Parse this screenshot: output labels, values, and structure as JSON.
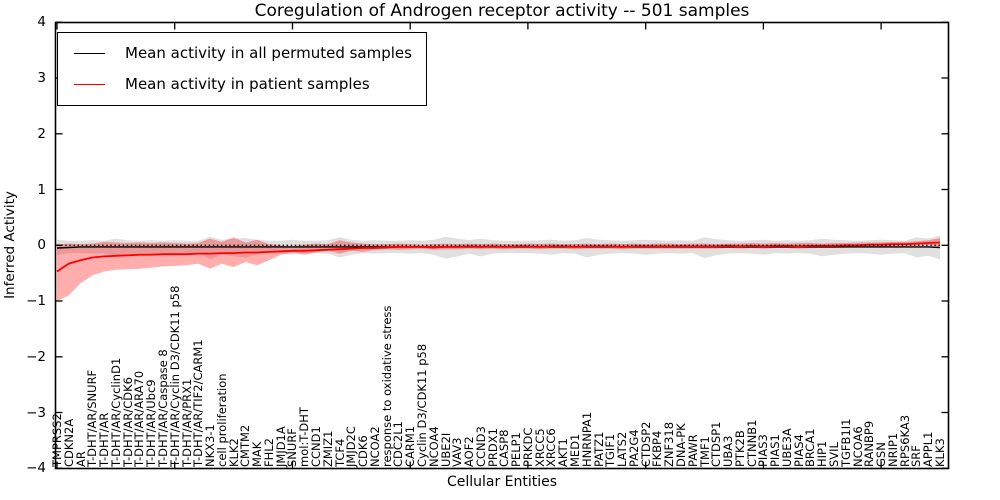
{
  "figure": {
    "title": "Coregulation of Androgen receptor activity -- 501 samples",
    "xlabel": "Cellular Entities",
    "ylabel": "Inferred Activity"
  },
  "legend": {
    "position": "upper left",
    "items": [
      {
        "label": "Mean activity in all permuted samples",
        "color": "#000000",
        "line_width": 1.4
      },
      {
        "label": "Mean activity in patient samples",
        "color": "#ff0000",
        "line_width": 1.8
      }
    ]
  },
  "chart_data": {
    "type": "line",
    "title": "Coregulation of Androgen receptor activity -- 501 samples",
    "xlabel": "Cellular Entities",
    "ylabel": "Inferred Activity",
    "ylim": [
      -4,
      4
    ],
    "grid": false,
    "legend_position": "upper left",
    "ytick_values": [
      4,
      3,
      2,
      1,
      0,
      -1,
      -2,
      -3,
      -4
    ],
    "ytick_labels": [
      "4",
      "3",
      "2",
      "1",
      "0",
      "−1",
      "−2",
      "−3",
      "−4"
    ],
    "reference_line": {
      "y": 0,
      "style": "dotted",
      "color": "#000000"
    },
    "categories": [
      "TMPRSS2",
      "CDKN2A",
      "AR",
      "T-DHT/AR/SNURF",
      "T-DHT/AR",
      "T-DHT/AR/CyclinD1",
      "T-DHT/AR/CDK6",
      "T-DHT/AR/ARA70",
      "T-DHT/AR/Ubc9",
      "T-DHT/AR/Caspase 8",
      "T-DHT/AR/Cyclin D3/CDK11 p58",
      "T-DHT/AR/PRX1",
      "T-DHT/AR/TIF2/CARM1",
      "NKX3-1",
      "cell proliferation",
      "KLK2",
      "CMTM2",
      "MAK",
      "FHL2",
      "JMJD1A",
      "SNURF",
      "mol:T-DHT",
      "CCND1",
      "ZMIZ1",
      "TCF4",
      "JMJD2C",
      "CDK6",
      "NCOA2",
      "response to oxidative stress",
      "CDC2L1",
      "CARM1",
      "Cyclin D3/CDK11 p58",
      "NCOA4",
      "UBE2I",
      "VAV3",
      "AOF2",
      "CCND3",
      "PRDX1",
      "CASP8",
      "PELP1",
      "PRKDC",
      "XRCC5",
      "XRCC6",
      "AKT1",
      "MED1",
      "HNRNPA1",
      "PATZ1",
      "TGIF1",
      "LATS2",
      "PA2G4",
      "CTDSP2",
      "FKBP4",
      "ZNF318",
      "DNA-PK",
      "PAWR",
      "TMF1",
      "CTDSP1",
      "UBA3",
      "PTK2B",
      "CTNNB1",
      "PIAS3",
      "PIAS1",
      "UBE3A",
      "PIAS4",
      "BRCA1",
      "HIP1",
      "SVIL",
      "TGFB1I1",
      "NCOA6",
      "RANBP9",
      "GSN",
      "NRIP1",
      "RPS6KA3",
      "SRF",
      "APPL1",
      "KLK3"
    ],
    "series": [
      {
        "name": "Mean activity in all permuted samples",
        "color": "#000000",
        "style": "solid",
        "width": 1.4,
        "values": [
          -0.05,
          -0.04,
          -0.03,
          -0.03,
          -0.03,
          -0.03,
          -0.03,
          -0.03,
          -0.03,
          -0.03,
          -0.03,
          -0.03,
          -0.03,
          -0.03,
          -0.03,
          -0.03,
          -0.03,
          -0.03,
          -0.03,
          -0.03,
          -0.03,
          -0.03,
          -0.03,
          -0.03,
          -0.03,
          -0.03,
          -0.03,
          -0.03,
          -0.03,
          -0.03,
          -0.03,
          -0.03,
          -0.03,
          -0.03,
          -0.03,
          -0.03,
          -0.03,
          -0.03,
          -0.03,
          -0.03,
          -0.03,
          -0.03,
          -0.03,
          -0.03,
          -0.03,
          -0.03,
          -0.03,
          -0.03,
          -0.03,
          -0.03,
          -0.03,
          -0.03,
          -0.03,
          -0.03,
          -0.03,
          -0.03,
          -0.03,
          -0.03,
          -0.03,
          -0.03,
          -0.03,
          -0.03,
          -0.03,
          -0.03,
          -0.03,
          -0.03,
          -0.03,
          -0.03,
          -0.03,
          -0.03,
          -0.03,
          -0.03,
          -0.03,
          -0.03,
          -0.03,
          -0.04
        ]
      },
      {
        "name": "Mean activity in patient samples",
        "color": "#ff0000",
        "style": "solid",
        "width": 1.8,
        "values": [
          -0.47,
          -0.33,
          -0.27,
          -0.22,
          -0.2,
          -0.19,
          -0.18,
          -0.17,
          -0.17,
          -0.16,
          -0.16,
          -0.16,
          -0.15,
          -0.15,
          -0.14,
          -0.14,
          -0.13,
          -0.13,
          -0.12,
          -0.11,
          -0.1,
          -0.1,
          -0.09,
          -0.08,
          -0.07,
          -0.06,
          -0.05,
          -0.05,
          -0.04,
          -0.03,
          -0.03,
          -0.03,
          -0.04,
          -0.03,
          -0.03,
          -0.02,
          -0.03,
          -0.02,
          -0.03,
          -0.02,
          -0.02,
          -0.03,
          -0.02,
          -0.02,
          -0.03,
          -0.02,
          -0.02,
          -0.02,
          -0.03,
          -0.02,
          -0.02,
          -0.02,
          -0.02,
          -0.02,
          -0.02,
          -0.02,
          -0.02,
          -0.01,
          -0.02,
          -0.01,
          -0.02,
          -0.01,
          -0.01,
          -0.02,
          -0.01,
          -0.01,
          -0.01,
          0.0,
          0.0,
          0.01,
          0.01,
          0.02,
          0.02,
          0.03,
          0.04,
          0.05
        ]
      }
    ],
    "bands": [
      {
        "name": "permuted-samples-std-band",
        "color": "#555555",
        "opacity": 0.18,
        "upper": [
          0.1,
          0.08,
          0.08,
          0.09,
          0.08,
          0.12,
          0.09,
          0.08,
          0.09,
          0.08,
          0.09,
          0.08,
          0.08,
          0.15,
          0.1,
          0.12,
          0.13,
          0.1,
          0.08,
          0.08,
          0.1,
          0.08,
          0.08,
          0.09,
          0.14,
          0.1,
          0.08,
          0.09,
          0.08,
          0.08,
          0.09,
          0.08,
          0.1,
          0.15,
          0.12,
          0.09,
          0.12,
          0.09,
          0.08,
          0.08,
          0.08,
          0.09,
          0.1,
          0.08,
          0.09,
          0.13,
          0.1,
          0.09,
          0.08,
          0.09,
          0.1,
          0.09,
          0.08,
          0.09,
          0.08,
          0.14,
          0.11,
          0.09,
          0.08,
          0.09,
          0.1,
          0.08,
          0.09,
          0.08,
          0.09,
          0.12,
          0.1,
          0.09,
          0.08,
          0.09,
          0.1,
          0.09,
          0.08,
          0.14,
          0.12,
          0.17
        ],
        "lower": [
          -0.18,
          -0.14,
          -0.14,
          -0.15,
          -0.14,
          -0.2,
          -0.15,
          -0.14,
          -0.15,
          -0.14,
          -0.15,
          -0.14,
          -0.14,
          -0.25,
          -0.17,
          -0.2,
          -0.22,
          -0.17,
          -0.14,
          -0.14,
          -0.17,
          -0.14,
          -0.14,
          -0.15,
          -0.22,
          -0.17,
          -0.14,
          -0.15,
          -0.14,
          -0.14,
          -0.15,
          -0.14,
          -0.17,
          -0.24,
          -0.2,
          -0.15,
          -0.2,
          -0.15,
          -0.14,
          -0.14,
          -0.14,
          -0.15,
          -0.17,
          -0.14,
          -0.15,
          -0.22,
          -0.17,
          -0.15,
          -0.14,
          -0.15,
          -0.17,
          -0.15,
          -0.14,
          -0.15,
          -0.14,
          -0.23,
          -0.18,
          -0.15,
          -0.14,
          -0.15,
          -0.17,
          -0.14,
          -0.15,
          -0.14,
          -0.15,
          -0.2,
          -0.17,
          -0.15,
          -0.14,
          -0.15,
          -0.17,
          -0.15,
          -0.14,
          -0.22,
          -0.19,
          -0.25
        ]
      },
      {
        "name": "patient-samples-std-band",
        "color": "#ff0000",
        "opacity": 0.32,
        "upper": [
          0.02,
          0.03,
          0.02,
          0.03,
          0.06,
          0.05,
          0.04,
          0.05,
          0.04,
          0.05,
          0.04,
          0.03,
          0.04,
          0.12,
          0.06,
          0.14,
          0.05,
          0.1,
          0.02,
          0.0,
          -0.02,
          0.01,
          0.03,
          0.02,
          0.09,
          0.05,
          0.03,
          0.02,
          0.02,
          0.03,
          0.02,
          0.01,
          0.02,
          0.03,
          0.02,
          0.03,
          0.02,
          0.03,
          0.02,
          0.02,
          0.03,
          0.02,
          0.03,
          0.02,
          0.02,
          0.03,
          0.02,
          0.03,
          0.02,
          0.03,
          0.02,
          0.03,
          0.03,
          0.02,
          0.03,
          0.03,
          0.02,
          0.03,
          0.03,
          0.04,
          0.03,
          0.04,
          0.03,
          0.04,
          0.04,
          0.03,
          0.04,
          0.04,
          0.05,
          0.05,
          0.05,
          0.06,
          0.06,
          0.07,
          0.09,
          0.13
        ],
        "lower": [
          -1.0,
          -0.9,
          -0.68,
          -0.54,
          -0.47,
          -0.44,
          -0.43,
          -0.42,
          -0.4,
          -0.38,
          -0.37,
          -0.36,
          -0.33,
          -0.42,
          -0.33,
          -0.39,
          -0.3,
          -0.36,
          -0.27,
          -0.17,
          -0.13,
          -0.17,
          -0.13,
          -0.1,
          -0.15,
          -0.1,
          -0.12,
          -0.08,
          -0.07,
          -0.08,
          -0.07,
          -0.06,
          -0.08,
          -0.07,
          -0.07,
          -0.06,
          -0.07,
          -0.06,
          -0.07,
          -0.06,
          -0.06,
          -0.07,
          -0.06,
          -0.06,
          -0.07,
          -0.06,
          -0.06,
          -0.06,
          -0.07,
          -0.06,
          -0.06,
          -0.06,
          -0.06,
          -0.06,
          -0.06,
          -0.06,
          -0.06,
          -0.05,
          -0.06,
          -0.05,
          -0.06,
          -0.05,
          -0.05,
          -0.06,
          -0.05,
          -0.05,
          -0.05,
          -0.04,
          -0.04,
          -0.03,
          -0.03,
          -0.02,
          -0.02,
          -0.01,
          0.0,
          -0.02
        ]
      }
    ]
  }
}
